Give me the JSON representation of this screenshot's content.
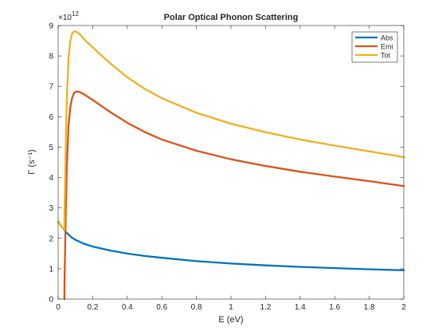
{
  "chart_data": {
    "type": "line",
    "title": "Polar Optical Phonon Scattering",
    "xlabel": "E (eV)",
    "ylabel": "Γ (s⁻¹)",
    "y_scale_exponent": "×10",
    "y_scale_power": "12",
    "xlim": [
      0,
      2
    ],
    "ylim": [
      0,
      9
    ],
    "xticks": [
      0,
      0.2,
      0.4,
      0.6,
      0.8,
      1,
      1.2,
      1.4,
      1.6,
      1.8,
      2
    ],
    "xtick_labels": [
      "0",
      "0.2",
      "0.4",
      "0.6",
      "0.8",
      "1",
      "1.2",
      "1.4",
      "1.6",
      "1.8",
      "2"
    ],
    "yticks": [
      0,
      1,
      2,
      3,
      4,
      5,
      6,
      7,
      8,
      9
    ],
    "ytick_labels": [
      "0",
      "1",
      "2",
      "3",
      "4",
      "5",
      "6",
      "7",
      "8",
      "9"
    ],
    "grid": false,
    "legend_position": "top-right",
    "series": [
      {
        "name": "Abs",
        "color": "#0072BD",
        "x": [
          0.0,
          0.02,
          0.04,
          0.06,
          0.08,
          0.1,
          0.15,
          0.2,
          0.3,
          0.4,
          0.5,
          0.6,
          0.8,
          1.0,
          1.2,
          1.4,
          1.6,
          1.8,
          2.0
        ],
        "y": [
          2.55,
          2.38,
          2.24,
          2.12,
          2.02,
          1.95,
          1.82,
          1.73,
          1.6,
          1.5,
          1.42,
          1.36,
          1.25,
          1.17,
          1.11,
          1.06,
          1.02,
          0.98,
          0.95
        ]
      },
      {
        "name": "Emi",
        "color": "#D95319",
        "x": [
          0.036,
          0.037,
          0.04,
          0.045,
          0.05,
          0.06,
          0.07,
          0.08,
          0.09,
          0.1,
          0.11,
          0.12,
          0.14,
          0.16,
          0.2,
          0.3,
          0.4,
          0.5,
          0.6,
          0.8,
          1.0,
          1.2,
          1.4,
          1.6,
          1.8,
          2.0
        ],
        "y": [
          0.0,
          0.6,
          1.5,
          3.1,
          4.3,
          5.7,
          6.3,
          6.6,
          6.76,
          6.82,
          6.83,
          6.82,
          6.77,
          6.7,
          6.55,
          6.16,
          5.8,
          5.5,
          5.25,
          4.88,
          4.6,
          4.38,
          4.19,
          4.03,
          3.88,
          3.72
        ]
      },
      {
        "name": "Tot",
        "color": "#EDB120",
        "x": [
          0.0,
          0.02,
          0.03,
          0.036,
          0.037,
          0.04,
          0.045,
          0.05,
          0.06,
          0.07,
          0.08,
          0.09,
          0.1,
          0.11,
          0.12,
          0.14,
          0.16,
          0.2,
          0.3,
          0.4,
          0.5,
          0.6,
          0.8,
          1.0,
          1.2,
          1.4,
          1.6,
          1.8,
          2.0
        ],
        "y": [
          2.55,
          2.38,
          2.31,
          2.27,
          2.86,
          3.74,
          5.34,
          6.54,
          7.94,
          8.48,
          8.72,
          8.8,
          8.8,
          8.78,
          8.74,
          8.62,
          8.49,
          8.28,
          7.76,
          7.3,
          6.92,
          6.61,
          6.13,
          5.77,
          5.49,
          5.25,
          5.05,
          4.86,
          4.67
        ]
      }
    ]
  }
}
